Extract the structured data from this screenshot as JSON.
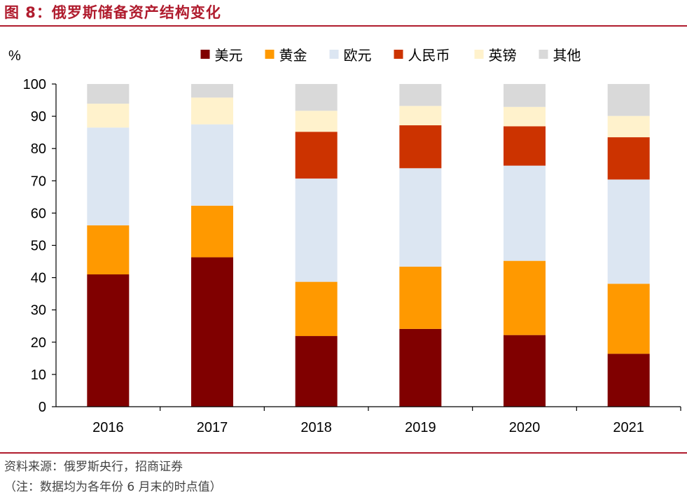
{
  "title": "图 8：俄罗斯储备资产结构变化",
  "source_line": "资料来源：俄罗斯央行，招商证券",
  "note_line": "（注：数据均为各年份 6 月末的时点值）",
  "chart_data": {
    "type": "bar",
    "stacked": true,
    "ylabel": "%",
    "ylim": [
      0,
      100
    ],
    "yticks": [
      0,
      10,
      20,
      30,
      40,
      50,
      60,
      70,
      80,
      90,
      100
    ],
    "categories": [
      "2016",
      "2017",
      "2018",
      "2019",
      "2020",
      "2021"
    ],
    "legend_position": "top",
    "grid": false,
    "series": [
      {
        "name": "美元",
        "color": "#800000",
        "values": [
          41.0,
          46.3,
          21.9,
          24.1,
          22.2,
          16.4
        ]
      },
      {
        "name": "黄金",
        "color": "#ff9900",
        "values": [
          15.2,
          16.0,
          16.8,
          19.3,
          23.0,
          21.7
        ]
      },
      {
        "name": "欧元",
        "color": "#dce6f2",
        "values": [
          30.3,
          25.2,
          32.0,
          30.5,
          29.5,
          32.3
        ]
      },
      {
        "name": "人民币",
        "color": "#cc3300",
        "values": [
          0.0,
          0.0,
          14.5,
          13.3,
          12.2,
          13.1
        ]
      },
      {
        "name": "英镑",
        "color": "#fff2cc",
        "values": [
          7.4,
          8.3,
          6.5,
          6.0,
          6.0,
          6.6
        ]
      },
      {
        "name": "其他",
        "color": "#d9d9d9",
        "values": [
          6.1,
          4.2,
          8.3,
          6.8,
          7.1,
          9.9
        ]
      }
    ]
  }
}
